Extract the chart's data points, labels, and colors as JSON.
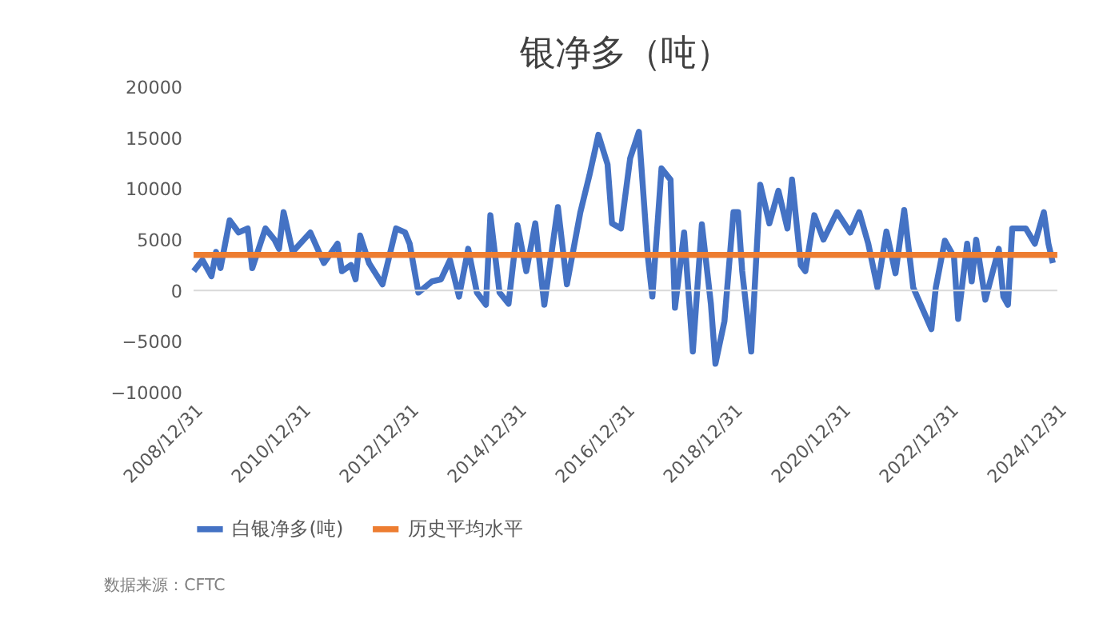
{
  "chart_data": {
    "type": "line",
    "title": "银净多（吨）",
    "xlim": [
      "2008-12-31",
      "2024-12-31"
    ],
    "xticks": [
      {
        "value": "2008-12-31",
        "label": "2008/12/31"
      },
      {
        "value": "2010-12-31",
        "label": "2010/12/31"
      },
      {
        "value": "2012-12-31",
        "label": "2012/12/31"
      },
      {
        "value": "2014-12-31",
        "label": "2014/12/31"
      },
      {
        "value": "2016-12-31",
        "label": "2016/12/31"
      },
      {
        "value": "2018-12-31",
        "label": "2018/12/31"
      },
      {
        "value": "2020-12-31",
        "label": "2020/12/31"
      },
      {
        "value": "2022-12-31",
        "label": "2022/12/31"
      },
      {
        "value": "2024-12-31",
        "label": "2024/12/31"
      }
    ],
    "ylim": [
      -10000,
      20000
    ],
    "yticks": [
      -10000,
      -5000,
      0,
      5000,
      10000,
      15000,
      20000
    ],
    "grid": false,
    "legend": "bottom",
    "line_style": "solid",
    "marker": "none",
    "ref_lines": [
      {
        "axis": "y",
        "value": 0,
        "color": "#d9d9d9"
      }
    ],
    "annotations": [
      "数据来源：CFTC"
    ],
    "series": [
      {
        "name": "白银净多(吨)",
        "color": "#4472c4",
        "x": [
          "2009-01",
          "2009-03",
          "2009-05",
          "2009-06",
          "2009-07",
          "2009-09",
          "2009-11",
          "2010-01",
          "2010-02",
          "2010-05",
          "2010-07",
          "2010-08",
          "2010-09",
          "2010-11",
          "2011-03",
          "2011-06",
          "2011-09",
          "2011-10",
          "2011-12",
          "2012-01",
          "2012-02",
          "2012-04",
          "2012-07",
          "2012-10",
          "2012-12",
          "2013-01",
          "2013-03",
          "2013-06",
          "2013-08",
          "2013-10",
          "2013-12",
          "2014-02",
          "2014-04",
          "2014-06",
          "2014-07",
          "2014-09",
          "2014-11",
          "2015-01",
          "2015-03",
          "2015-05",
          "2015-07",
          "2015-10",
          "2015-12",
          "2016-03",
          "2016-05",
          "2016-07",
          "2016-09",
          "2016-10",
          "2016-12",
          "2017-02",
          "2017-04",
          "2017-06",
          "2017-07",
          "2017-09",
          "2017-11",
          "2017-12",
          "2018-02",
          "2018-04",
          "2018-06",
          "2018-08",
          "2018-09",
          "2018-11",
          "2019-01",
          "2019-02",
          "2019-03",
          "2019-05",
          "2019-07",
          "2019-09",
          "2019-11",
          "2020-01",
          "2020-02",
          "2020-04",
          "2020-05",
          "2020-07",
          "2020-09",
          "2020-12",
          "2021-03",
          "2021-05",
          "2021-07",
          "2021-09",
          "2021-11",
          "2022-01",
          "2022-03",
          "2022-05",
          "2022-09",
          "2022-10",
          "2022-12",
          "2023-02",
          "2023-03",
          "2023-05",
          "2023-06",
          "2023-07",
          "2023-09",
          "2023-12",
          "2024-01",
          "2024-02",
          "2024-03",
          "2024-06",
          "2024-08",
          "2024-10",
          "2024-11",
          "2024-12"
        ],
        "values": [
          1900,
          3000,
          1400,
          3800,
          2200,
          6900,
          5700,
          6100,
          2200,
          6100,
          5000,
          4100,
          7700,
          3800,
          5700,
          2700,
          4600,
          1900,
          2500,
          1100,
          5400,
          2700,
          600,
          6100,
          5700,
          4600,
          -200,
          900,
          1100,
          3000,
          -600,
          4100,
          -200,
          -1400,
          7400,
          -200,
          -1300,
          6400,
          1900,
          6600,
          -1400,
          8200,
          600,
          7700,
          11300,
          15300,
          12400,
          6600,
          6100,
          13000,
          15600,
          3300,
          -600,
          12000,
          10900,
          -1700,
          5700,
          -6000,
          6500,
          -1300,
          -7200,
          -3000,
          7700,
          7700,
          1900,
          -6000,
          10400,
          6600,
          9800,
          6100,
          10900,
          2500,
          1900,
          7400,
          5000,
          7700,
          5700,
          7700,
          4600,
          300,
          5800,
          1700,
          7900,
          300,
          -3800,
          300,
          4900,
          3300,
          -2800,
          4600,
          900,
          5000,
          -900,
          4100,
          -600,
          -1400,
          6100,
          6100,
          4600,
          7700,
          4600,
          2700
        ]
      },
      {
        "name": "历史平均水平",
        "color": "#ed7d31",
        "x": [
          "2008-12-31",
          "2024-12-31"
        ],
        "values": [
          3500,
          3500
        ]
      }
    ]
  }
}
